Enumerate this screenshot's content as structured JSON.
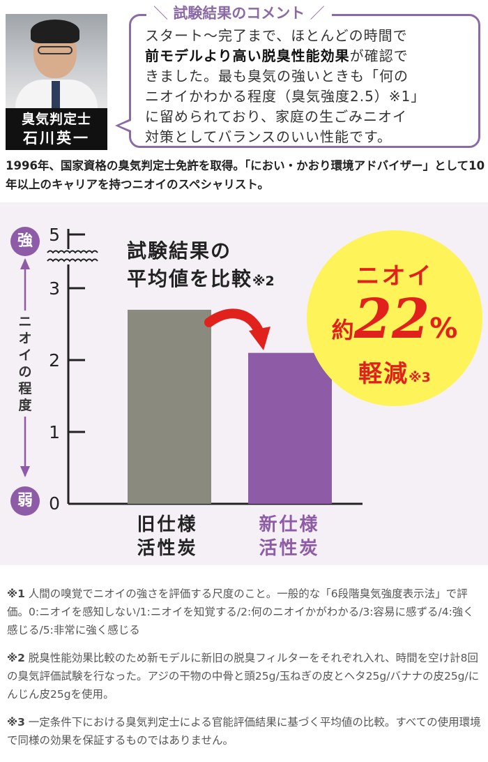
{
  "comment": {
    "title": "試験結果のコメント",
    "lines": [
      {
        "pre": "スタート〜完了まで、ほとんどの時間で",
        "bold": "",
        "post": ""
      },
      {
        "pre": "",
        "bold": "前モデルより高い脱臭性能効果",
        "post": "が確認で"
      },
      {
        "pre": "きました。最も臭気の強いときも「何の",
        "bold": "",
        "post": ""
      },
      {
        "pre": "ニオイかわかる程度（臭気強度2.5）※1」",
        "bold": "",
        "post": ""
      },
      {
        "pre": "に留められており、家庭の生ごみニオイ",
        "bold": "",
        "post": ""
      },
      {
        "pre": "対策としてバランスのいい性能です。",
        "bold": "",
        "post": ""
      }
    ]
  },
  "expert": {
    "role": "臭気判定士",
    "name": "石川英一"
  },
  "bio": "1996年、国家資格の臭気判定士免許を取得。「におい・かおり環境アドバイザー」として10年以上のキャリアを持つニオイのスペシャリスト。",
  "chart_data": {
    "type": "bar",
    "title": "試験結果の平均値を比較",
    "title_lines": [
      "試験結果の",
      "平均値を比較"
    ],
    "title_note": "※2",
    "ylabel": "ニオイの程度",
    "ylabel_top": "強",
    "ylabel_bottom": "弱",
    "y_ticks": [
      0,
      1,
      2,
      3,
      5
    ],
    "y_axis_break": "between 3 and 5",
    "ylim": [
      0,
      5
    ],
    "categories": [
      "旧仕様活性炭",
      "新仕様活性炭"
    ],
    "category_lines": [
      [
        "旧仕様",
        "活性炭"
      ],
      [
        "新仕様",
        "活性炭"
      ]
    ],
    "values": [
      2.7,
      2.1
    ],
    "colors": [
      "#8a8b7e",
      "#8e5ca6"
    ],
    "annotation": {
      "line1": "ニオイ",
      "prefix": "約",
      "number": "22",
      "unit": "%",
      "line3": "軽減",
      "note": "※3"
    }
  },
  "footnotes": [
    {
      "mark": "※1",
      "text": " 人間の嗅覚でニオイの強さを評価する尺度のこと。一般的な「6段階臭気強度表示法」で評価。0:ニオイを感知しない/1:ニオイを知覚する/2:何のニオイかがわかる/3:容易に感ずる/4:強く感じる/5:非常に強く感じる"
    },
    {
      "mark": "※2",
      "text": " 脱臭性能効果比較のため新モデルに新旧の脱臭フィルターをそれぞれ入れ、時間を空け計8回の臭気評価試験を行なった。アジの干物の中骨と頭25g/玉ねぎの皮とヘタ25g/バナナの皮25g/にんじん皮25gを使用。"
    },
    {
      "mark": "※3",
      "text": " 一定条件下における臭気判定士による官能評価結果に基づく平均値の比較。すべての使用環境で同様の効果を保証するものではありません。"
    }
  ]
}
